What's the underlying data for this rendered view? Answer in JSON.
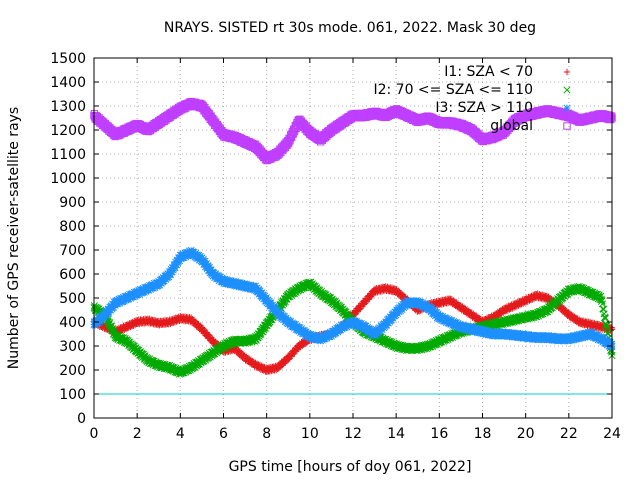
{
  "chart_data": {
    "type": "scatter",
    "title": "NRAYS. SISTED rt 30s mode. 061, 2022. Mask 30 deg",
    "xlabel": "GPS time [hours of doy 061, 2022]",
    "ylabel": "Number of GPS receiver-satellite rays",
    "xlim": [
      0,
      24
    ],
    "ylim": [
      0,
      1500
    ],
    "xticks": [
      "0",
      "2",
      "4",
      "6",
      "8",
      "10",
      "12",
      "14",
      "16",
      "18",
      "20",
      "22",
      "24"
    ],
    "yticks": [
      "0",
      "100",
      "200",
      "300",
      "400",
      "500",
      "600",
      "700",
      "800",
      "900",
      "1000",
      "1100",
      "1200",
      "1300",
      "1400",
      "1500"
    ],
    "grid": true,
    "legend_position": "top-right",
    "reference_line": {
      "y": 100,
      "color": "#00cccc"
    },
    "series": [
      {
        "name": "I1: SZA < 70",
        "marker": "+",
        "color": "#e41a1c",
        "x": [
          0,
          0.5,
          1,
          1.5,
          2,
          2.5,
          3,
          3.5,
          4,
          4.5,
          5,
          5.5,
          6,
          6.5,
          7,
          7.5,
          8,
          8.5,
          9,
          9.5,
          10,
          10.5,
          11,
          11.5,
          12,
          12.5,
          13,
          13.5,
          14,
          14.5,
          15,
          15.5,
          16,
          16.5,
          17,
          17.5,
          18,
          18.5,
          19,
          19.5,
          20,
          20.5,
          21,
          21.5,
          22,
          22.5,
          23,
          23.5,
          24
        ],
        "y": [
          400,
          380,
          360,
          380,
          400,
          405,
          395,
          400,
          415,
          410,
          370,
          320,
          280,
          290,
          250,
          220,
          200,
          210,
          250,
          300,
          330,
          340,
          350,
          380,
          430,
          480,
          530,
          540,
          530,
          490,
          450,
          470,
          480,
          490,
          460,
          430,
          400,
          420,
          450,
          470,
          490,
          510,
          500,
          470,
          430,
          400,
          390,
          380,
          370
        ]
      },
      {
        "name": "I2: 70 <= SZA <= 110",
        "marker": "x",
        "color": "#00aa00",
        "x": [
          0,
          0.5,
          1,
          1.5,
          2,
          2.5,
          3,
          3.5,
          4,
          4.5,
          5,
          5.5,
          6,
          6.5,
          7,
          7.5,
          8,
          8.5,
          9,
          9.5,
          10,
          10.5,
          11,
          11.5,
          12,
          12.5,
          13,
          13.5,
          14,
          14.5,
          15,
          15.5,
          16,
          16.5,
          17,
          17.5,
          18,
          18.5,
          19,
          19.5,
          20,
          20.5,
          21,
          21.5,
          22,
          22.5,
          23,
          23.5,
          24
        ],
        "y": [
          460,
          430,
          340,
          320,
          280,
          240,
          220,
          210,
          190,
          210,
          240,
          270,
          300,
          320,
          320,
          330,
          390,
          450,
          510,
          540,
          560,
          520,
          490,
          450,
          400,
          360,
          340,
          320,
          300,
          290,
          290,
          300,
          320,
          340,
          360,
          370,
          380,
          390,
          400,
          410,
          420,
          430,
          450,
          490,
          530,
          540,
          520,
          500,
          260
        ]
      },
      {
        "name": "I3: SZA > 110",
        "marker": "*",
        "color": "#1e90ff",
        "x": [
          0,
          0.5,
          1,
          1.5,
          2,
          2.5,
          3,
          3.5,
          4,
          4.5,
          5,
          5.5,
          6,
          6.5,
          7,
          7.5,
          8,
          8.5,
          9,
          9.5,
          10,
          10.5,
          11,
          11.5,
          12,
          12.5,
          13,
          13.5,
          14,
          14.5,
          15,
          15.5,
          16,
          16.5,
          17,
          17.5,
          18,
          18.5,
          19,
          19.5,
          20,
          20.5,
          21,
          21.5,
          22,
          22.5,
          23,
          23.5,
          24
        ],
        "y": [
          390,
          430,
          480,
          500,
          520,
          540,
          560,
          600,
          670,
          690,
          660,
          600,
          570,
          560,
          550,
          540,
          490,
          440,
          400,
          370,
          340,
          330,
          350,
          380,
          400,
          380,
          350,
          390,
          440,
          480,
          480,
          460,
          420,
          400,
          380,
          370,
          360,
          350,
          350,
          345,
          340,
          335,
          335,
          330,
          330,
          340,
          350,
          330,
          300
        ]
      },
      {
        "name": "global",
        "marker": "square",
        "color": "#bf3fff",
        "x": [
          0,
          0.5,
          1,
          1.5,
          2,
          2.5,
          3,
          3.5,
          4,
          4.5,
          5,
          5.5,
          6,
          6.5,
          7,
          7.5,
          8,
          8.5,
          9,
          9.5,
          10,
          10.5,
          11,
          11.5,
          12,
          12.5,
          13,
          13.5,
          14,
          14.5,
          15,
          15.5,
          16,
          16.5,
          17,
          17.5,
          18,
          18.5,
          19,
          19.5,
          20,
          20.5,
          21,
          21.5,
          22,
          22.5,
          23,
          23.5,
          24
        ],
        "y": [
          1260,
          1220,
          1180,
          1200,
          1220,
          1200,
          1230,
          1260,
          1290,
          1310,
          1300,
          1240,
          1180,
          1170,
          1150,
          1130,
          1080,
          1100,
          1150,
          1240,
          1190,
          1160,
          1200,
          1230,
          1260,
          1260,
          1270,
          1260,
          1280,
          1260,
          1240,
          1250,
          1230,
          1230,
          1220,
          1200,
          1160,
          1170,
          1190,
          1240,
          1260,
          1270,
          1280,
          1270,
          1260,
          1240,
          1250,
          1260,
          1250
        ]
      }
    ]
  }
}
